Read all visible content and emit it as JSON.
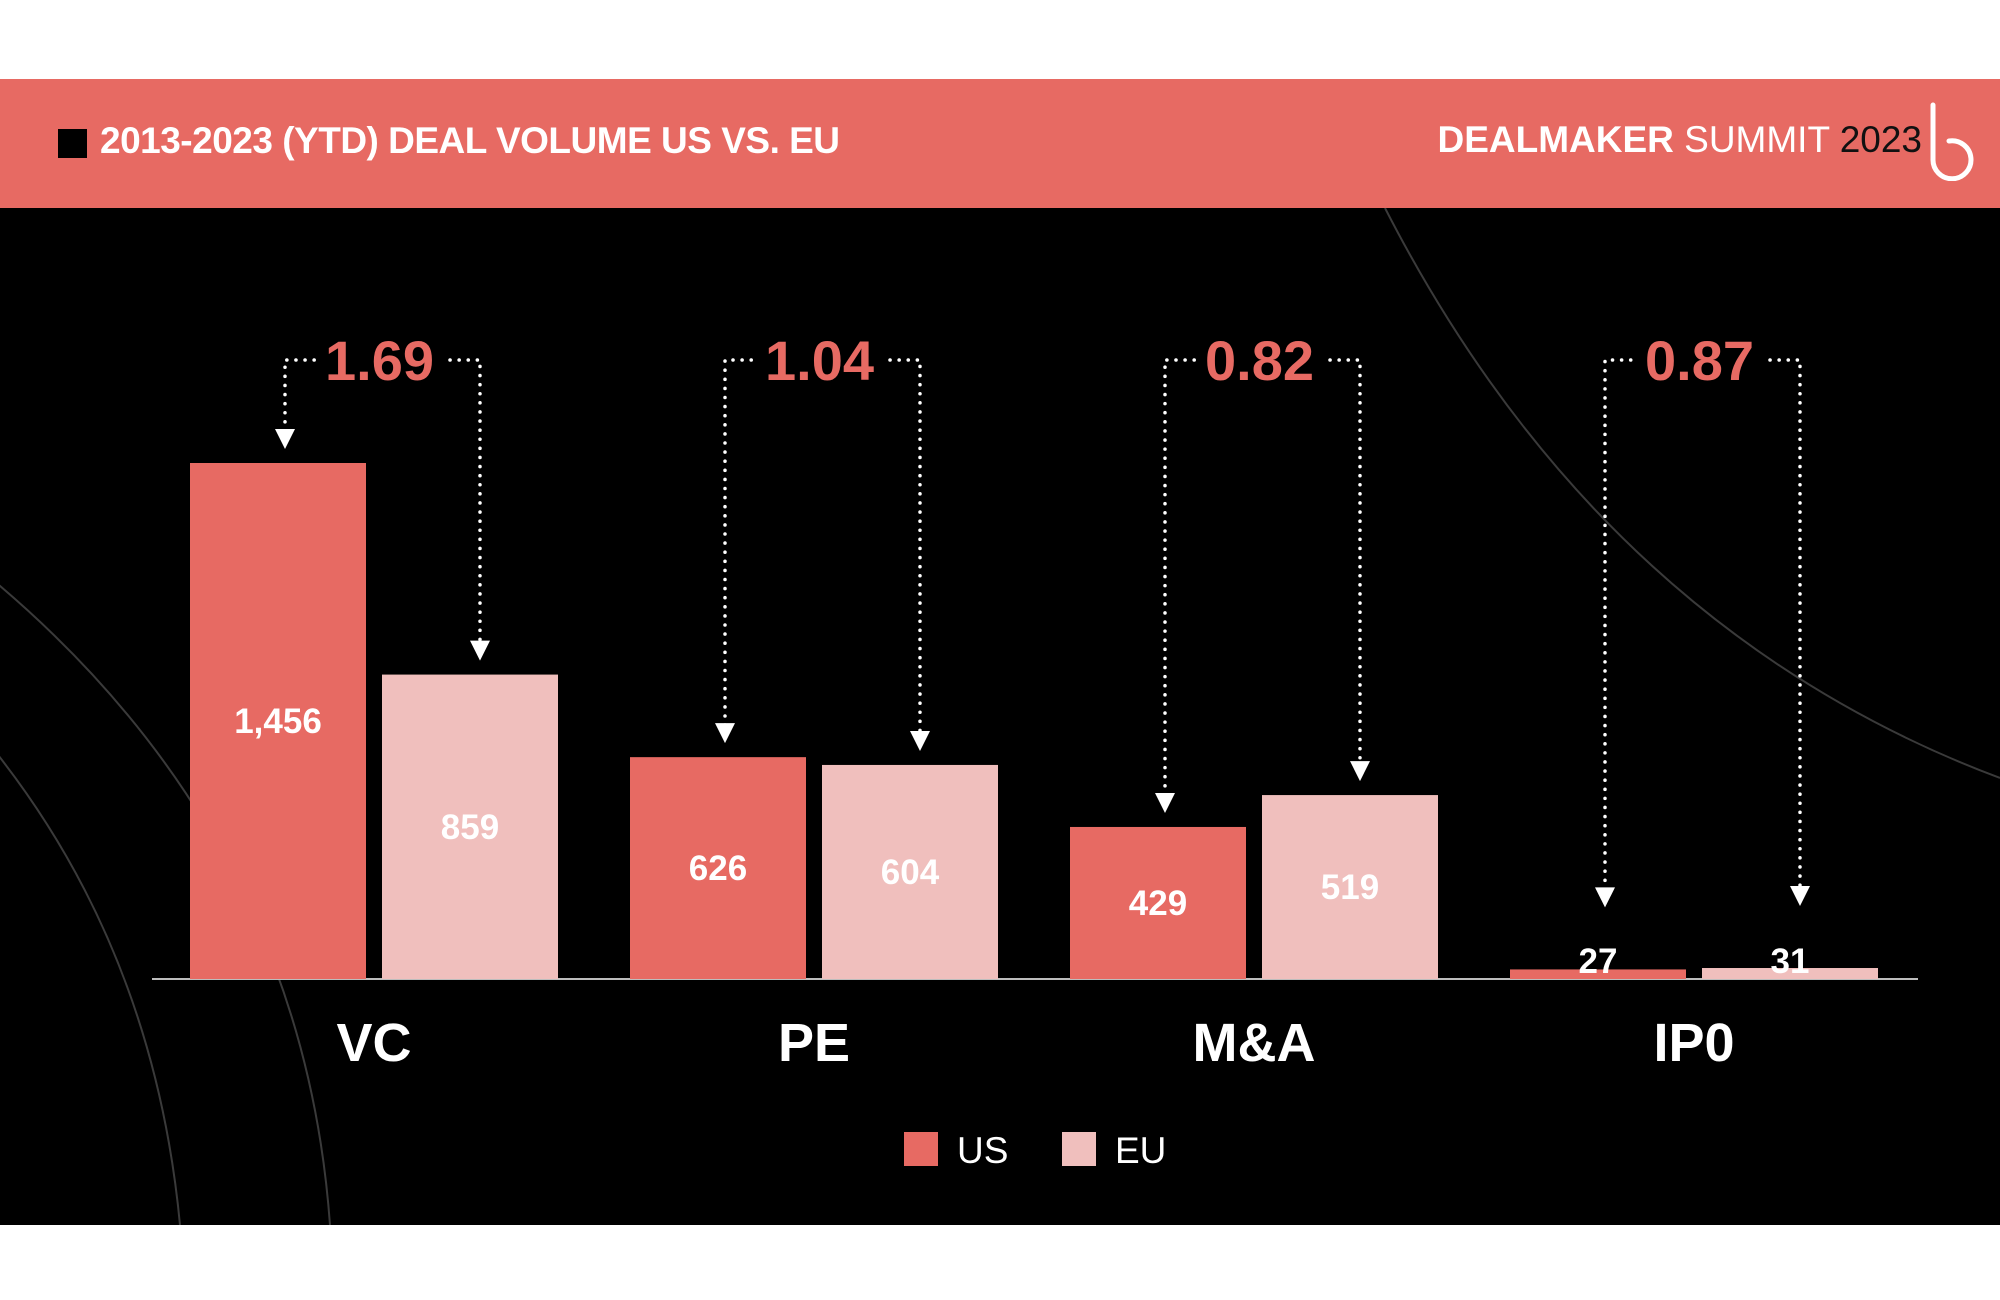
{
  "header": {
    "title": "2013-2023 (YTD) DEAL VOLUME US VS. EU",
    "brand_strong": "DEALMAKER",
    "brand_light": " SUMMIT ",
    "brand_year": "2023",
    "logo_icon": "b-logo-icon"
  },
  "colors": {
    "accent": "#e76a63",
    "us": "#e76a63",
    "eu": "#f0bfbd",
    "background": "#000000"
  },
  "chart_data": {
    "type": "bar",
    "title": "2013-2023 (YTD) DEAL VOLUME US VS. EU",
    "categories": [
      "VC",
      "PE",
      "M&A",
      "IP0"
    ],
    "series": [
      {
        "name": "US",
        "values": [
          1456,
          626,
          429,
          27
        ]
      },
      {
        "name": "EU",
        "values": [
          859,
          604,
          519,
          31
        ]
      }
    ],
    "value_labels": {
      "US": [
        "1,456",
        "626",
        "429",
        "27"
      ],
      "EU": [
        "859",
        "604",
        "519",
        "31"
      ]
    },
    "ratios": [
      "1.69",
      "1.04",
      "0.82",
      "0.87"
    ],
    "ylim": [
      0,
      1456
    ],
    "grid": false,
    "legend": "bottom-center",
    "xlabel": "",
    "ylabel": ""
  }
}
